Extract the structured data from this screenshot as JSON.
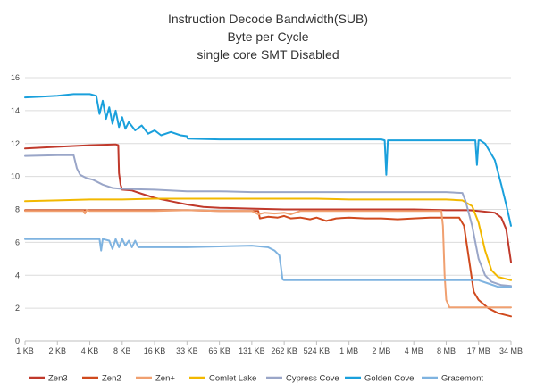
{
  "chart_data": {
    "type": "line",
    "title": [
      "Instruction Decode Bandwidth(SUB)",
      "Byte per Cycle",
      "single core SMT Disabled"
    ],
    "xlabel": "",
    "ylabel": "",
    "ylim": [
      0,
      16
    ],
    "yticks": [
      0,
      2,
      4,
      6,
      8,
      10,
      12,
      14,
      16
    ],
    "xlim": [
      0,
      15
    ],
    "categories": [
      "1 KB",
      "2 KB",
      "4 KB",
      "8 KB",
      "16 KB",
      "33 KB",
      "66 KB",
      "131 KB",
      "262 KB",
      "524 KB",
      "1 MB",
      "2 MB",
      "4 MB",
      "8 MB",
      "17 MB",
      "34 MB"
    ],
    "grid": true,
    "legend_position": "bottom",
    "series": [
      {
        "name": "Zen3",
        "color": "#c0392b",
        "points": [
          [
            0,
            11.7
          ],
          [
            1,
            11.8
          ],
          [
            2,
            11.9
          ],
          [
            2.8,
            11.95
          ],
          [
            2.88,
            11.9
          ],
          [
            2.9,
            10.2
          ],
          [
            2.95,
            9.5
          ],
          [
            3.0,
            9.2
          ],
          [
            3.3,
            9.15
          ],
          [
            3.6,
            8.95
          ],
          [
            4,
            8.7
          ],
          [
            4.5,
            8.5
          ],
          [
            5,
            8.3
          ],
          [
            5.5,
            8.15
          ],
          [
            6,
            8.1
          ],
          [
            7,
            8.05
          ],
          [
            8,
            8.0
          ],
          [
            9,
            8.0
          ],
          [
            10,
            8.0
          ],
          [
            11,
            8.0
          ],
          [
            12,
            8.0
          ],
          [
            13,
            7.95
          ],
          [
            13.7,
            7.95
          ],
          [
            14,
            7.9
          ],
          [
            14.5,
            7.8
          ],
          [
            14.7,
            7.5
          ],
          [
            14.85,
            6.8
          ],
          [
            15,
            4.8
          ]
        ]
      },
      {
        "name": "Zen2",
        "color": "#d04a1e",
        "points": [
          [
            0,
            7.95
          ],
          [
            1,
            7.95
          ],
          [
            2,
            7.95
          ],
          [
            3,
            7.95
          ],
          [
            4,
            7.95
          ],
          [
            5,
            7.95
          ],
          [
            6,
            7.9
          ],
          [
            7,
            7.9
          ],
          [
            7.2,
            7.9
          ],
          [
            7.25,
            7.45
          ],
          [
            7.5,
            7.55
          ],
          [
            7.8,
            7.5
          ],
          [
            8,
            7.6
          ],
          [
            8.2,
            7.45
          ],
          [
            8.5,
            7.5
          ],
          [
            8.8,
            7.4
          ],
          [
            9,
            7.5
          ],
          [
            9.3,
            7.3
          ],
          [
            9.6,
            7.45
          ],
          [
            10,
            7.5
          ],
          [
            10.5,
            7.45
          ],
          [
            11,
            7.45
          ],
          [
            11.5,
            7.4
          ],
          [
            12,
            7.45
          ],
          [
            12.5,
            7.5
          ],
          [
            13,
            7.5
          ],
          [
            13.4,
            7.5
          ],
          [
            13.55,
            7.0
          ],
          [
            13.7,
            5.0
          ],
          [
            13.85,
            3.0
          ],
          [
            14,
            2.5
          ],
          [
            14.3,
            2.0
          ],
          [
            14.6,
            1.7
          ],
          [
            15,
            1.5
          ]
        ]
      },
      {
        "name": "Zen+",
        "color": "#f0a070",
        "points": [
          [
            0,
            7.9
          ],
          [
            1,
            7.9
          ],
          [
            1.8,
            7.9
          ],
          [
            1.85,
            7.75
          ],
          [
            1.9,
            7.95
          ],
          [
            2,
            7.9
          ],
          [
            3,
            7.9
          ],
          [
            4,
            7.9
          ],
          [
            5,
            7.95
          ],
          [
            6,
            7.9
          ],
          [
            7,
            7.9
          ],
          [
            7.2,
            7.7
          ],
          [
            7.4,
            7.8
          ],
          [
            7.7,
            7.75
          ],
          [
            8,
            7.8
          ],
          [
            8.2,
            7.7
          ],
          [
            8.5,
            7.9
          ],
          [
            9,
            7.9
          ],
          [
            10,
            7.9
          ],
          [
            11,
            7.9
          ],
          [
            12,
            7.9
          ],
          [
            12.85,
            7.9
          ],
          [
            12.9,
            7.0
          ],
          [
            12.95,
            4.0
          ],
          [
            13.0,
            2.5
          ],
          [
            13.1,
            2.05
          ],
          [
            14,
            2.05
          ],
          [
            15,
            2.05
          ]
        ]
      },
      {
        "name": "Comlet Lake",
        "color": "#f2b800",
        "points": [
          [
            0,
            8.5
          ],
          [
            1,
            8.55
          ],
          [
            2,
            8.6
          ],
          [
            3,
            8.6
          ],
          [
            4,
            8.65
          ],
          [
            5,
            8.65
          ],
          [
            6,
            8.65
          ],
          [
            7,
            8.65
          ],
          [
            8,
            8.65
          ],
          [
            9,
            8.65
          ],
          [
            10,
            8.6
          ],
          [
            11,
            8.6
          ],
          [
            12,
            8.6
          ],
          [
            13,
            8.6
          ],
          [
            13.5,
            8.55
          ],
          [
            13.8,
            8.2
          ],
          [
            14,
            7.2
          ],
          [
            14.2,
            5.5
          ],
          [
            14.4,
            4.3
          ],
          [
            14.6,
            3.9
          ],
          [
            15,
            3.7
          ]
        ]
      },
      {
        "name": "Cypress Cove",
        "color": "#9aa6c8",
        "points": [
          [
            0,
            11.25
          ],
          [
            1,
            11.3
          ],
          [
            1.5,
            11.3
          ],
          [
            1.6,
            10.5
          ],
          [
            1.7,
            10.1
          ],
          [
            1.9,
            9.9
          ],
          [
            2.1,
            9.8
          ],
          [
            2.4,
            9.5
          ],
          [
            2.7,
            9.3
          ],
          [
            3,
            9.25
          ],
          [
            4,
            9.2
          ],
          [
            5,
            9.1
          ],
          [
            6,
            9.1
          ],
          [
            7,
            9.05
          ],
          [
            8,
            9.05
          ],
          [
            9,
            9.05
          ],
          [
            10,
            9.05
          ],
          [
            11,
            9.05
          ],
          [
            12,
            9.05
          ],
          [
            13,
            9.05
          ],
          [
            13.5,
            9.0
          ],
          [
            13.6,
            8.5
          ],
          [
            13.8,
            7.0
          ],
          [
            14.0,
            5.0
          ],
          [
            14.2,
            4.0
          ],
          [
            14.4,
            3.6
          ],
          [
            14.7,
            3.4
          ],
          [
            15,
            3.35
          ]
        ]
      },
      {
        "name": "Golden Cove",
        "color": "#1aa0dc",
        "points": [
          [
            0,
            14.8
          ],
          [
            0.5,
            14.85
          ],
          [
            1,
            14.9
          ],
          [
            1.5,
            15.0
          ],
          [
            2,
            15.0
          ],
          [
            2.2,
            14.9
          ],
          [
            2.3,
            13.8
          ],
          [
            2.4,
            14.6
          ],
          [
            2.5,
            13.5
          ],
          [
            2.6,
            14.2
          ],
          [
            2.7,
            13.2
          ],
          [
            2.8,
            14.0
          ],
          [
            2.9,
            13.0
          ],
          [
            3,
            13.6
          ],
          [
            3.1,
            12.9
          ],
          [
            3.2,
            13.3
          ],
          [
            3.4,
            12.8
          ],
          [
            3.6,
            13.1
          ],
          [
            3.8,
            12.6
          ],
          [
            4,
            12.8
          ],
          [
            4.2,
            12.5
          ],
          [
            4.5,
            12.7
          ],
          [
            4.8,
            12.5
          ],
          [
            5,
            12.45
          ],
          [
            5.02,
            12.3
          ],
          [
            6,
            12.25
          ],
          [
            7,
            12.25
          ],
          [
            8,
            12.25
          ],
          [
            9,
            12.25
          ],
          [
            10,
            12.25
          ],
          [
            11,
            12.25
          ],
          [
            11.1,
            12.2
          ],
          [
            11.15,
            10.1
          ],
          [
            11.2,
            12.2
          ],
          [
            12,
            12.2
          ],
          [
            13,
            12.2
          ],
          [
            13.9,
            12.2
          ],
          [
            13.95,
            10.7
          ],
          [
            14.0,
            12.2
          ],
          [
            14.05,
            12.2
          ],
          [
            14.2,
            12.0
          ],
          [
            14.5,
            11.0
          ],
          [
            14.7,
            9.5
          ],
          [
            14.85,
            8.3
          ],
          [
            15,
            7.0
          ]
        ]
      },
      {
        "name": "Gracemont",
        "color": "#7fb3e0",
        "points": [
          [
            0,
            6.2
          ],
          [
            0.5,
            6.2
          ],
          [
            1,
            6.2
          ],
          [
            2,
            6.2
          ],
          [
            2.3,
            6.2
          ],
          [
            2.35,
            5.5
          ],
          [
            2.4,
            6.2
          ],
          [
            2.6,
            6.1
          ],
          [
            2.7,
            5.6
          ],
          [
            2.8,
            6.2
          ],
          [
            2.9,
            5.7
          ],
          [
            3,
            6.2
          ],
          [
            3.1,
            5.8
          ],
          [
            3.2,
            6.1
          ],
          [
            3.3,
            5.7
          ],
          [
            3.4,
            6.1
          ],
          [
            3.5,
            5.7
          ],
          [
            4,
            5.7
          ],
          [
            5,
            5.7
          ],
          [
            6,
            5.75
          ],
          [
            7,
            5.8
          ],
          [
            7.5,
            5.7
          ],
          [
            7.7,
            5.5
          ],
          [
            7.85,
            5.2
          ],
          [
            7.9,
            4.5
          ],
          [
            7.95,
            3.75
          ],
          [
            8,
            3.7
          ],
          [
            9,
            3.7
          ],
          [
            10,
            3.7
          ],
          [
            11,
            3.7
          ],
          [
            12,
            3.7
          ],
          [
            13,
            3.7
          ],
          [
            14,
            3.7
          ],
          [
            14.3,
            3.5
          ],
          [
            14.6,
            3.3
          ],
          [
            15,
            3.3
          ]
        ]
      }
    ]
  }
}
